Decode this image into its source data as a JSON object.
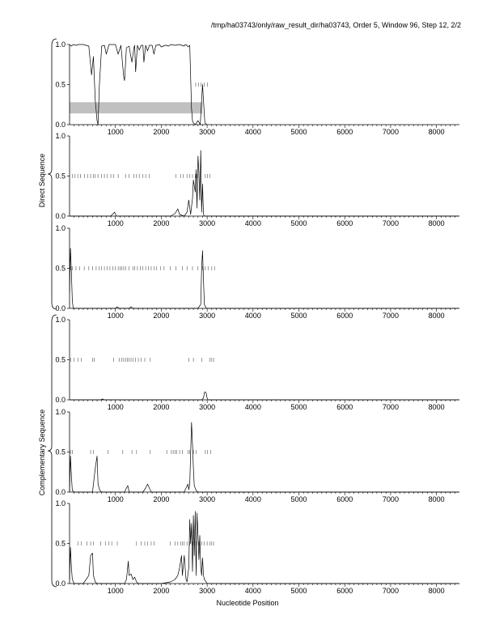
{
  "header": {
    "title": "/tmp/ha03743/only/raw_result_dir/ha03743, Order 5, Window 96, Step 12, 2/2"
  },
  "labels": {
    "xlabel": "Nucleotide Position",
    "direct": "Direct Sequence",
    "complementary": "Complementary Sequence"
  },
  "colors": {
    "line": "#000000",
    "axis": "#000000",
    "tick": "#555555",
    "highlight": "#c0c0c0"
  },
  "chart_data": [
    {
      "type": "line",
      "panel": 1,
      "group": "Direct Sequence",
      "xlim": [
        0,
        8500
      ],
      "ylim": [
        0.0,
        1.0
      ],
      "x_ticks": [
        1000,
        2000,
        3000,
        4000,
        5000,
        6000,
        7000,
        8000
      ],
      "y_ticks": [
        0.0,
        0.5,
        1.0
      ],
      "shaded_region": {
        "x": [
          0,
          2900
        ],
        "y": [
          0.14,
          0.28
        ]
      },
      "series": [
        {
          "x": [
            0,
            40,
            80,
            140,
            200,
            300,
            420,
            480,
            520,
            560,
            600,
            620,
            650,
            700,
            760,
            800,
            860,
            900,
            1000,
            1060,
            1120,
            1180,
            1200,
            1240,
            1300,
            1320,
            1360,
            1400,
            1420,
            1440,
            1480,
            1520,
            1560,
            1600,
            1620,
            1660,
            1700,
            1740,
            1800,
            1840,
            1880,
            1900,
            1960,
            2000,
            2080,
            2100,
            2160,
            2200,
            2300,
            2400,
            2500,
            2520,
            2560,
            2580,
            2620,
            2640,
            2660,
            2680,
            2700,
            2740,
            2800,
            2850,
            2900,
            2950,
            3000
          ],
          "y": [
            1.0,
            0.98,
            1.0,
            0.99,
            1.0,
            1.0,
            0.98,
            0.62,
            0.85,
            0.3,
            0.05,
            0.0,
            0.5,
            0.98,
            0.99,
            0.88,
            1.0,
            1.0,
            1.0,
            0.88,
            0.99,
            0.6,
            0.55,
            0.96,
            0.98,
            0.9,
            0.78,
            0.95,
            0.99,
            0.66,
            0.99,
            0.93,
            0.99,
            0.99,
            0.78,
            0.99,
            0.92,
            0.99,
            0.99,
            0.88,
            0.99,
            0.99,
            1.0,
            0.97,
            0.99,
            0.99,
            0.98,
            1.0,
            0.99,
            1.0,
            0.98,
            1.0,
            0.99,
            0.97,
            0.99,
            0.6,
            0.2,
            0.05,
            0.02,
            0.0,
            0.05,
            0.0,
            0.5,
            0.02,
            0.0
          ]
        }
      ],
      "tick_marks_y": 0.5,
      "tick_marks_x": [
        2750,
        2810,
        2870,
        2940,
        3010
      ]
    },
    {
      "type": "line",
      "panel": 2,
      "group": "Direct Sequence",
      "xlim": [
        0,
        8500
      ],
      "ylim": [
        0.0,
        1.0
      ],
      "x_ticks": [
        1000,
        2000,
        3000,
        4000,
        5000,
        6000,
        7000,
        8000
      ],
      "y_ticks": [
        0.0,
        0.5,
        1.0
      ],
      "series": [
        {
          "x": [
            0,
            900,
            980,
            1020,
            1060,
            2000,
            2200,
            2300,
            2360,
            2400,
            2500,
            2560,
            2600,
            2640,
            2680,
            2700,
            2740,
            2760,
            2780,
            2800,
            2820,
            2840,
            2860,
            2880,
            2900,
            2920,
            2940,
            2960,
            3000,
            8500
          ],
          "y": [
            0,
            0,
            0.05,
            0.0,
            0,
            0,
            0,
            0.03,
            0.09,
            0.02,
            0,
            0.05,
            0.2,
            0.02,
            0.22,
            0.45,
            0.3,
            0.58,
            0.1,
            0.75,
            0.55,
            0.2,
            0.82,
            0.05,
            0.4,
            0.02,
            0,
            0,
            0,
            0
          ]
        }
      ],
      "tick_marks_y": 0.5,
      "tick_marks_x": [
        60,
        120,
        180,
        240,
        330,
        400,
        460,
        520,
        560,
        620,
        700,
        760,
        820,
        900,
        960,
        1060,
        1220,
        1300,
        1400,
        1460,
        1520,
        1600,
        1660,
        1740,
        2320,
        2420,
        2480,
        2560,
        2620,
        2680,
        2740,
        2780,
        2960,
        3010,
        3060
      ]
    },
    {
      "type": "line",
      "panel": 3,
      "group": "Direct Sequence",
      "xlim": [
        0,
        8500
      ],
      "ylim": [
        0.0,
        1.0
      ],
      "x_ticks": [
        1000,
        2000,
        3000,
        4000,
        5000,
        6000,
        7000,
        8000
      ],
      "y_ticks": [
        0.0,
        0.5,
        1.0
      ],
      "series": [
        {
          "x": [
            0,
            20,
            40,
            60,
            80,
            120,
            200,
            800,
            1000,
            1040,
            1080,
            1200,
            1300,
            1340,
            1380,
            1500,
            2000,
            2800,
            2860,
            2880,
            2900,
            2920,
            2940,
            2980,
            3000,
            8500
          ],
          "y": [
            0.2,
            0.75,
            0.45,
            0.1,
            0,
            0,
            0,
            0,
            0,
            0.02,
            0,
            0,
            0,
            0.02,
            0,
            0,
            0,
            0,
            0.05,
            0.5,
            0.72,
            0.35,
            0.05,
            0,
            0,
            0
          ]
        }
      ],
      "tick_marks_y": 0.5,
      "tick_marks_x": [
        20,
        60,
        140,
        220,
        320,
        420,
        500,
        580,
        640,
        700,
        760,
        820,
        880,
        940,
        1000,
        1060,
        1100,
        1140,
        1180,
        1220,
        1300,
        1380,
        1420,
        1480,
        1540,
        1600,
        1660,
        1720,
        1780,
        1840,
        1900,
        1980,
        2060,
        2200,
        2320,
        2460,
        2560,
        2680,
        2800,
        2900,
        2960,
        3020,
        3100,
        3160
      ]
    },
    {
      "type": "line",
      "panel": 4,
      "group": "Complementary Sequence",
      "xlim": [
        0,
        8500
      ],
      "ylim": [
        0.0,
        1.0
      ],
      "x_ticks": [
        1000,
        2000,
        3000,
        4000,
        5000,
        6000,
        7000,
        8000
      ],
      "y_ticks": [
        0.0,
        0.5,
        1.0
      ],
      "series": [
        {
          "x": [
            0,
            680,
            720,
            760,
            800,
            2800,
            2880,
            2920,
            2940,
            2960,
            2980,
            3000,
            3020,
            8500
          ],
          "y": [
            0,
            0,
            0.01,
            0,
            0,
            0,
            0,
            0.02,
            0.09,
            0.1,
            0.08,
            0.02,
            0,
            0
          ]
        }
      ],
      "tick_marks_y": 0.5,
      "tick_marks_x": [
        30,
        100,
        180,
        260,
        500,
        540,
        960,
        1080,
        1140,
        1180,
        1220,
        1260,
        1300,
        1340,
        1380,
        1440,
        1500,
        1560,
        1640,
        1760,
        2600,
        2700,
        2880,
        3060,
        3100,
        3140
      ]
    },
    {
      "type": "line",
      "panel": 5,
      "group": "Complementary Sequence",
      "xlim": [
        0,
        8500
      ],
      "ylim": [
        0.0,
        1.0
      ],
      "x_ticks": [
        1000,
        2000,
        3000,
        4000,
        5000,
        6000,
        7000,
        8000
      ],
      "y_ticks": [
        0.0,
        0.5,
        1.0
      ],
      "series": [
        {
          "x": [
            0,
            20,
            40,
            60,
            100,
            200,
            500,
            560,
            600,
            620,
            660,
            700,
            1200,
            1240,
            1270,
            1300,
            1600,
            1660,
            1700,
            1740,
            1780,
            2200,
            2500,
            2540,
            2580,
            2600,
            2620,
            2640,
            2660,
            2680,
            2700,
            2720,
            2760,
            2800,
            8500
          ],
          "y": [
            0,
            0.45,
            0.2,
            0.02,
            0,
            0,
            0,
            0.3,
            0.45,
            0.1,
            0.02,
            0,
            0,
            0.05,
            0.08,
            0,
            0,
            0.05,
            0.1,
            0.05,
            0,
            0,
            0,
            0.05,
            0.1,
            0.03,
            0.1,
            0.48,
            0.87,
            0.6,
            0.3,
            0.08,
            0.02,
            0,
            0
          ]
        }
      ],
      "tick_marks_y": 0.5,
      "tick_marks_x": [
        20,
        60,
        460,
        520,
        840,
        1160,
        1360,
        1460,
        1760,
        2120,
        2220,
        2260,
        2300,
        2340,
        2400,
        2460,
        2580,
        2620,
        2700,
        2760,
        2960,
        3010,
        3080
      ]
    },
    {
      "type": "line",
      "panel": 6,
      "group": "Complementary Sequence",
      "xlim": [
        0,
        8500
      ],
      "ylim": [
        0.0,
        1.0
      ],
      "x_ticks": [
        1000,
        2000,
        3000,
        4000,
        5000,
        6000,
        7000,
        8000
      ],
      "y_ticks": [
        0.0,
        0.5,
        1.0
      ],
      "series": [
        {
          "x": [
            0,
            20,
            40,
            60,
            100,
            300,
            420,
            460,
            500,
            520,
            560,
            600,
            900,
            1200,
            1240,
            1260,
            1280,
            1300,
            1340,
            1380,
            1420,
            1460,
            1500,
            1700,
            2000,
            2200,
            2300,
            2360,
            2400,
            2440,
            2460,
            2500,
            2540,
            2560,
            2600,
            2620,
            2640,
            2660,
            2680,
            2700,
            2720,
            2740,
            2760,
            2780,
            2800,
            2820,
            2840,
            2860,
            2880,
            2900,
            2920,
            2940,
            2980,
            3000,
            8500
          ],
          "y": [
            0.05,
            0.45,
            0.2,
            0.05,
            0,
            0,
            0.1,
            0.35,
            0.38,
            0.1,
            0.02,
            0,
            0,
            0,
            0.05,
            0.15,
            0.28,
            0.1,
            0.12,
            0.05,
            0.08,
            0.02,
            0,
            0,
            0,
            0.02,
            0.05,
            0.1,
            0.2,
            0.35,
            0.1,
            0.35,
            0.05,
            0.02,
            0.2,
            0.8,
            0.5,
            0.75,
            0.15,
            0.85,
            0.35,
            0.9,
            0.1,
            0.88,
            0.6,
            0.3,
            0.6,
            0.2,
            0.1,
            0.32,
            0.1,
            0.05,
            0.02,
            0,
            0
          ]
        }
      ],
      "tick_marks_y": 0.5,
      "tick_marks_x": [
        180,
        260,
        380,
        460,
        520,
        680,
        780,
        860,
        920,
        1040,
        1460,
        1560,
        1640,
        1700,
        1780,
        1840,
        2200,
        2300,
        2360,
        2420,
        2460,
        2500,
        2560,
        2620,
        2680,
        2760,
        2820,
        2880,
        2940,
        3000,
        3060,
        3100,
        3140
      ]
    }
  ]
}
